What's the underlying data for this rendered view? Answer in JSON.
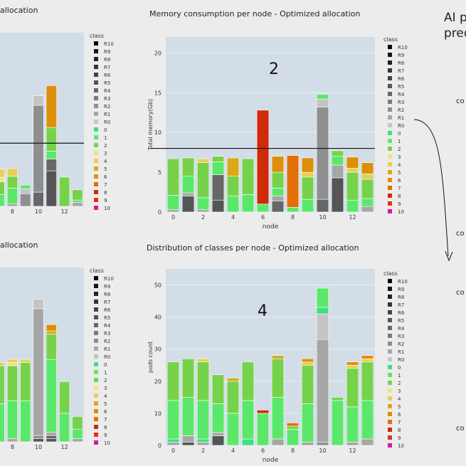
{
  "page": {
    "left_top_title_fragment": "allocation",
    "left_bottom_title_fragment": "allocation",
    "right_heading": "AI p\npred",
    "right_col_text": [
      "co",
      "co",
      "co",
      "co"
    ]
  },
  "legend_title": "class",
  "legend_items": [
    {
      "label": "R10",
      "color": "#0a0a0a"
    },
    {
      "label": "R9",
      "color": "#151515"
    },
    {
      "label": "R8",
      "color": "#222222"
    },
    {
      "label": "R7",
      "color": "#333333"
    },
    {
      "label": "R6",
      "color": "#444444"
    },
    {
      "label": "R5",
      "color": "#555555"
    },
    {
      "label": "R4",
      "color": "#676767"
    },
    {
      "label": "R3",
      "color": "#7a7a7a"
    },
    {
      "label": "R2",
      "color": "#8f8f8f"
    },
    {
      "label": "R1",
      "color": "#a6a6a6"
    },
    {
      "label": "R0",
      "color": "#c4c4c4"
    },
    {
      "label": "0",
      "color": "#3ee07e"
    },
    {
      "label": "1",
      "color": "#5be86a"
    },
    {
      "label": "2",
      "color": "#77d24b"
    },
    {
      "label": "3",
      "color": "#ece387"
    },
    {
      "label": "4",
      "color": "#e6cf54"
    },
    {
      "label": "5",
      "color": "#dca81a"
    },
    {
      "label": "6",
      "color": "#dc8f08"
    },
    {
      "label": "7",
      "color": "#e36f08"
    },
    {
      "label": "8",
      "color": "#cf2a0a"
    },
    {
      "label": "9",
      "color": "#e03218"
    },
    {
      "label": "10",
      "color": "#d21aa0"
    }
  ],
  "annotations": {
    "panel2": "2",
    "panel4": "4"
  },
  "chart_data": [
    {
      "type": "bar",
      "title": "Memory consumption per node - Optimized allocation",
      "xlabel": "node",
      "ylabel": "Total memory(Gb)",
      "ylim": [
        0,
        22
      ],
      "yticks": [
        0,
        5,
        10,
        15,
        20
      ],
      "xticks": [
        0,
        2,
        4,
        6,
        8,
        10,
        12
      ],
      "threshold_line": 8,
      "stack_order": [
        "R10",
        "R9",
        "R8",
        "R7",
        "R6",
        "R5",
        "R4",
        "R3",
        "R2",
        "R1",
        "R0",
        "0",
        "1",
        "2",
        "3",
        "4",
        "5",
        "6",
        "7",
        "8",
        "9",
        "10"
      ],
      "bars": [
        {
          "node": 0,
          "segments": [
            [
              "R1",
              0.3
            ],
            [
              "1",
              1.8
            ],
            [
              "2",
              4.6
            ]
          ]
        },
        {
          "node": 1,
          "segments": [
            [
              "R5",
              2.0
            ],
            [
              "R1",
              0.4
            ],
            [
              "1",
              2.1
            ],
            [
              "2",
              2.3
            ]
          ]
        },
        {
          "node": 2,
          "segments": [
            [
              "R1",
              0.3
            ],
            [
              "1",
              1.5
            ],
            [
              "2",
              4.4
            ],
            [
              "4",
              0.5
            ]
          ]
        },
        {
          "node": 3,
          "segments": [
            [
              "R5",
              1.5
            ],
            [
              "R4",
              3.2
            ],
            [
              "1",
              1.6
            ],
            [
              "2",
              0.7
            ]
          ]
        },
        {
          "node": 4,
          "segments": [
            [
              "1",
              2.0
            ],
            [
              "2",
              2.5
            ],
            [
              "5",
              2.3
            ]
          ]
        },
        {
          "node": 5,
          "segments": [
            [
              "1",
              2.2
            ],
            [
              "2",
              4.5
            ]
          ]
        },
        {
          "node": 6,
          "segments": [
            [
              "1",
              1.0
            ],
            [
              "8",
              11.8
            ]
          ]
        },
        {
          "node": 7,
          "segments": [
            [
              "R4",
              1.4
            ],
            [
              "R1",
              0.6
            ],
            [
              "1",
              1.0
            ],
            [
              "2",
              2.0
            ],
            [
              "6",
              2.0
            ]
          ]
        },
        {
          "node": 8,
          "segments": [
            [
              "1",
              0.6
            ],
            [
              "7",
              6.5
            ]
          ]
        },
        {
          "node": 9,
          "segments": [
            [
              "1",
              1.6
            ],
            [
              "2",
              2.8
            ],
            [
              "4",
              0.6
            ],
            [
              "6",
              1.8
            ]
          ]
        },
        {
          "node": 10,
          "segments": [
            [
              "R4",
              1.6
            ],
            [
              "R2",
              11.6
            ],
            [
              "R0",
              1.0
            ],
            [
              "1",
              0.6
            ]
          ]
        },
        {
          "node": 11,
          "segments": [
            [
              "R5",
              4.3
            ],
            [
              "R1",
              1.6
            ],
            [
              "1",
              1.1
            ],
            [
              "2",
              0.7
            ]
          ]
        },
        {
          "node": 12,
          "segments": [
            [
              "1",
              1.5
            ],
            [
              "2",
              3.5
            ],
            [
              "4",
              0.5
            ],
            [
              "6",
              1.4
            ]
          ]
        },
        {
          "node": 13,
          "segments": [
            [
              "R1",
              0.7
            ],
            [
              "1",
              1.0
            ],
            [
              "2",
              2.4
            ],
            [
              "4",
              0.7
            ],
            [
              "6",
              1.4
            ]
          ]
        }
      ]
    },
    {
      "type": "bar",
      "title": "Distribution of classes per node - Optimized allocation",
      "xlabel": "node",
      "ylabel": "pods count",
      "ylim": [
        0,
        55
      ],
      "yticks": [
        0,
        10,
        20,
        30,
        40,
        50
      ],
      "xticks": [
        0,
        2,
        4,
        6,
        8,
        10,
        12
      ],
      "stack_order": [
        "R10",
        "R9",
        "R8",
        "R7",
        "R6",
        "R5",
        "R4",
        "R3",
        "R2",
        "R1",
        "R0",
        "0",
        "1",
        "2",
        "3",
        "4",
        "5",
        "6",
        "7",
        "8",
        "9",
        "10"
      ],
      "bars": [
        {
          "node": 0,
          "segments": [
            [
              "R1",
              1
            ],
            [
              "0",
              1
            ],
            [
              "1",
              12
            ],
            [
              "2",
              12
            ]
          ]
        },
        {
          "node": 1,
          "segments": [
            [
              "R5",
              1
            ],
            [
              "R1",
              2
            ],
            [
              "1",
              12
            ],
            [
              "2",
              12
            ]
          ]
        },
        {
          "node": 2,
          "segments": [
            [
              "R1",
              1
            ],
            [
              "0",
              1
            ],
            [
              "1",
              12
            ],
            [
              "2",
              12
            ],
            [
              "4",
              1
            ]
          ]
        },
        {
          "node": 3,
          "segments": [
            [
              "R5",
              3
            ],
            [
              "R1",
              1
            ],
            [
              "1",
              9
            ],
            [
              "2",
              9
            ]
          ]
        },
        {
          "node": 4,
          "segments": [
            [
              "1",
              10
            ],
            [
              "2",
              10
            ],
            [
              "5",
              1
            ]
          ]
        },
        {
          "node": 5,
          "segments": [
            [
              "0",
              2
            ],
            [
              "1",
              12
            ],
            [
              "2",
              12
            ]
          ]
        },
        {
          "node": 6,
          "segments": [
            [
              "1",
              10
            ],
            [
              "8",
              1
            ]
          ]
        },
        {
          "node": 7,
          "segments": [
            [
              "R1",
              2
            ],
            [
              "1",
              13
            ],
            [
              "2",
              12
            ],
            [
              "5",
              1
            ]
          ]
        },
        {
          "node": 8,
          "segments": [
            [
              "1",
              5
            ],
            [
              "2",
              1
            ],
            [
              "7",
              1
            ]
          ]
        },
        {
          "node": 9,
          "segments": [
            [
              "R1",
              1
            ],
            [
              "1",
              12
            ],
            [
              "2",
              12
            ],
            [
              "4",
              1
            ],
            [
              "6",
              1
            ]
          ]
        },
        {
          "node": 10,
          "segments": [
            [
              "R2",
              1
            ],
            [
              "R1",
              32
            ],
            [
              "R0",
              8
            ],
            [
              "0",
              2
            ],
            [
              "1",
              6
            ]
          ]
        },
        {
          "node": 11,
          "segments": [
            [
              "1",
              14
            ],
            [
              "2",
              1
            ]
          ]
        },
        {
          "node": 12,
          "segments": [
            [
              "R1",
              1
            ],
            [
              "1",
              11
            ],
            [
              "2",
              12
            ],
            [
              "4",
              1
            ],
            [
              "6",
              1
            ]
          ]
        },
        {
          "node": 13,
          "segments": [
            [
              "R1",
              2
            ],
            [
              "1",
              12
            ],
            [
              "2",
              12
            ],
            [
              "4",
              1
            ],
            [
              "6",
              1
            ]
          ]
        }
      ]
    },
    {
      "type": "bar",
      "title": "",
      "xlabel": "",
      "ylabel": "",
      "ylim": [
        0,
        22
      ],
      "xticks": [
        8,
        10,
        12
      ],
      "threshold_line": 8,
      "stack_order": [
        "R10",
        "R9",
        "R8",
        "R7",
        "R6",
        "R5",
        "R4",
        "R3",
        "R2",
        "R1",
        "R0",
        "0",
        "1",
        "2",
        "3",
        "4",
        "5",
        "6",
        "7",
        "8",
        "9",
        "10"
      ],
      "bars": [
        {
          "node": 7,
          "segments": [
            [
              "1",
              1.5
            ],
            [
              "2",
              1.6
            ],
            [
              "3",
              0.6
            ],
            [
              "4",
              1.0
            ]
          ]
        },
        {
          "node": 8,
          "segments": [
            [
              "R1",
              0.3
            ],
            [
              "1",
              2.0
            ],
            [
              "2",
              1.5
            ],
            [
              "4",
              1.0
            ]
          ]
        },
        {
          "node": 9,
          "segments": [
            [
              "R2",
              1.6
            ],
            [
              "R0",
              0.6
            ],
            [
              "1",
              0.5
            ]
          ]
        },
        {
          "node": 10,
          "segments": [
            [
              "R4",
              1.8
            ],
            [
              "R2",
              11.0
            ],
            [
              "R0",
              1.2
            ]
          ]
        },
        {
          "node": 11,
          "segments": [
            [
              "R5",
              4.5
            ],
            [
              "R4",
              1.5
            ],
            [
              "1",
              1.0
            ],
            [
              "2",
              3.0
            ],
            [
              "6",
              5.3
            ]
          ]
        },
        {
          "node": 12,
          "segments": [
            [
              "2",
              3.7
            ]
          ]
        },
        {
          "node": 13,
          "segments": [
            [
              "R1",
              0.5
            ],
            [
              "1",
              0.3
            ],
            [
              "2",
              1.3
            ]
          ]
        }
      ]
    },
    {
      "type": "bar",
      "title": "",
      "xlabel": "",
      "ylabel": "",
      "ylim": [
        0,
        55
      ],
      "xticks": [
        8,
        10,
        12
      ],
      "stack_order": [
        "R10",
        "R9",
        "R8",
        "R7",
        "R6",
        "R5",
        "R4",
        "R3",
        "R2",
        "R1",
        "R0",
        "0",
        "1",
        "2",
        "3",
        "4",
        "5",
        "6",
        "7",
        "8",
        "9",
        "10"
      ],
      "bars": [
        {
          "node": 7,
          "segments": [
            [
              "1",
              12
            ],
            [
              "2",
              12
            ],
            [
              "4",
              1
            ]
          ]
        },
        {
          "node": 8,
          "segments": [
            [
              "R1",
              1
            ],
            [
              "1",
              12
            ],
            [
              "2",
              11
            ],
            [
              "3",
              1
            ],
            [
              "4",
              1
            ]
          ]
        },
        {
          "node": 9,
          "segments": [
            [
              "1",
              13
            ],
            [
              "2",
              12
            ],
            [
              "4",
              1
            ]
          ]
        },
        {
          "node": 10,
          "segments": [
            [
              "R5",
              1
            ],
            [
              "R2",
              1
            ],
            [
              "R1",
              40
            ],
            [
              "R0",
              3
            ]
          ]
        },
        {
          "node": 11,
          "segments": [
            [
              "R5",
              1
            ],
            [
              "R4",
              1
            ],
            [
              "R1",
              1
            ],
            [
              "1",
              23
            ],
            [
              "2",
              8
            ],
            [
              "5",
              1
            ],
            [
              "6",
              2
            ]
          ]
        },
        {
          "node": 12,
          "segments": [
            [
              "1",
              9
            ],
            [
              "2",
              10
            ]
          ]
        },
        {
          "node": 13,
          "segments": [
            [
              "R1",
              1
            ],
            [
              "1",
              3
            ],
            [
              "2",
              4
            ]
          ]
        }
      ]
    }
  ]
}
